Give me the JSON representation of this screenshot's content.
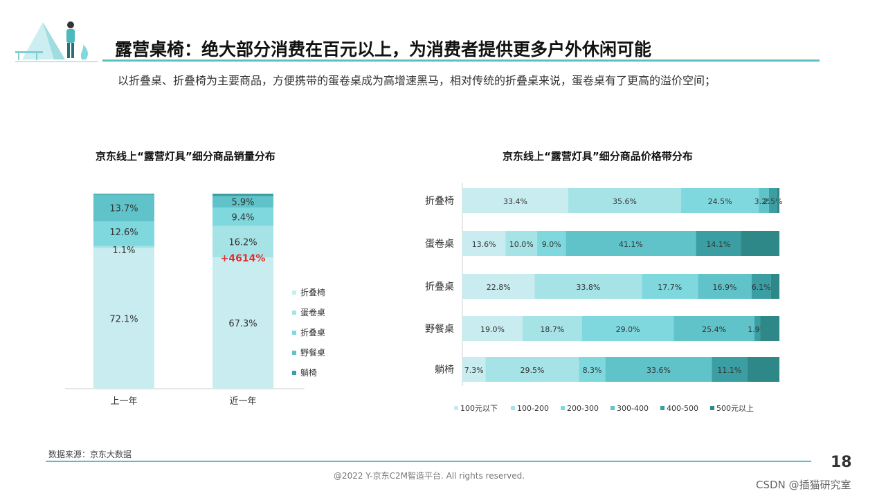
{
  "header": {
    "title": "露营桌椅：绝大部分消费在百元以上，为消费者提供更多户外休闲可能",
    "subtitle": "以折叠桌、折叠椅为主要商品，方便携带的蛋卷桌成为高增速黑马，相对传统的折叠桌来说，蛋卷桌有了更高的溢价空间；"
  },
  "footer": {
    "source": "数据来源：京东大数据",
    "page_number": "18",
    "copyright": "@2022 Y-京东C2M智造平台. All rights reserved.",
    "csdn": "CSDN @插猫研究室"
  },
  "colors": {
    "accent": "#5bbfc0",
    "highlight_red": "#e03131",
    "series": [
      "#c8ecef",
      "#a6e3e6",
      "#7fd8de",
      "#5fc3c9",
      "#3b9ea2",
      "#2e8888"
    ]
  },
  "chart_data": [
    {
      "type": "bar",
      "stacked": true,
      "percent": true,
      "title": "京东线上“露营灯具”细分商品销量分布",
      "categories": [
        "上一年",
        "近一年"
      ],
      "series": [
        {
          "name": "折叠椅",
          "values": [
            72.1,
            67.3
          ]
        },
        {
          "name": "蛋卷桌",
          "values": [
            1.1,
            16.2
          ]
        },
        {
          "name": "折叠桌",
          "values": [
            12.6,
            9.4
          ]
        },
        {
          "name": "野餐桌",
          "values": [
            13.7,
            5.9
          ]
        },
        {
          "name": "躺椅",
          "values": [
            0.5,
            1.2
          ]
        }
      ],
      "labels": [
        [
          "72.1%",
          "1.1%",
          "12.6%",
          "13.7%",
          ""
        ],
        [
          "67.3%",
          "16.2%",
          "9.4%",
          "5.9%",
          ""
        ]
      ],
      "annotation": "+4614%",
      "legend_position": "right"
    },
    {
      "type": "bar",
      "orientation": "horizontal",
      "stacked": true,
      "percent": true,
      "title": "京东线上“露营灯具”细分商品价格带分布",
      "categories": [
        "折叠椅",
        "蛋卷桌",
        "折叠桌",
        "野餐桌",
        "躺椅"
      ],
      "series": [
        {
          "name": "100元以下",
          "values": [
            33.4,
            13.6,
            22.8,
            19.0,
            7.3
          ]
        },
        {
          "name": "100-200",
          "values": [
            35.6,
            10.0,
            33.8,
            18.7,
            29.5
          ]
        },
        {
          "name": "200-300",
          "values": [
            24.5,
            9.0,
            17.7,
            29.0,
            8.3
          ]
        },
        {
          "name": "300-400",
          "values": [
            3.2,
            41.1,
            16.9,
            25.4,
            33.6
          ]
        },
        {
          "name": "400-500",
          "values": [
            2.5,
            14.1,
            6.1,
            1.9,
            11.1
          ]
        },
        {
          "name": "500元以上",
          "values": [
            0.8,
            12.2,
            2.7,
            6.0,
            10.2
          ]
        }
      ],
      "labels": [
        [
          "33.4%",
          "35.6%",
          "24.5%",
          "3.2%",
          "2.5%",
          ""
        ],
        [
          "13.6%",
          "10.0%",
          "9.0%",
          "41.1%",
          "14.1%",
          ""
        ],
        [
          "22.8%",
          "33.8%",
          "17.7%",
          "16.9%",
          "6.1%",
          ""
        ],
        [
          "19.0%",
          "18.7%",
          "29.0%",
          "25.4%",
          "1.9%",
          ""
        ],
        [
          "7.3%",
          "29.5%",
          "8.3%",
          "33.6%",
          "11.1%",
          ""
        ]
      ],
      "legend_position": "bottom"
    }
  ]
}
